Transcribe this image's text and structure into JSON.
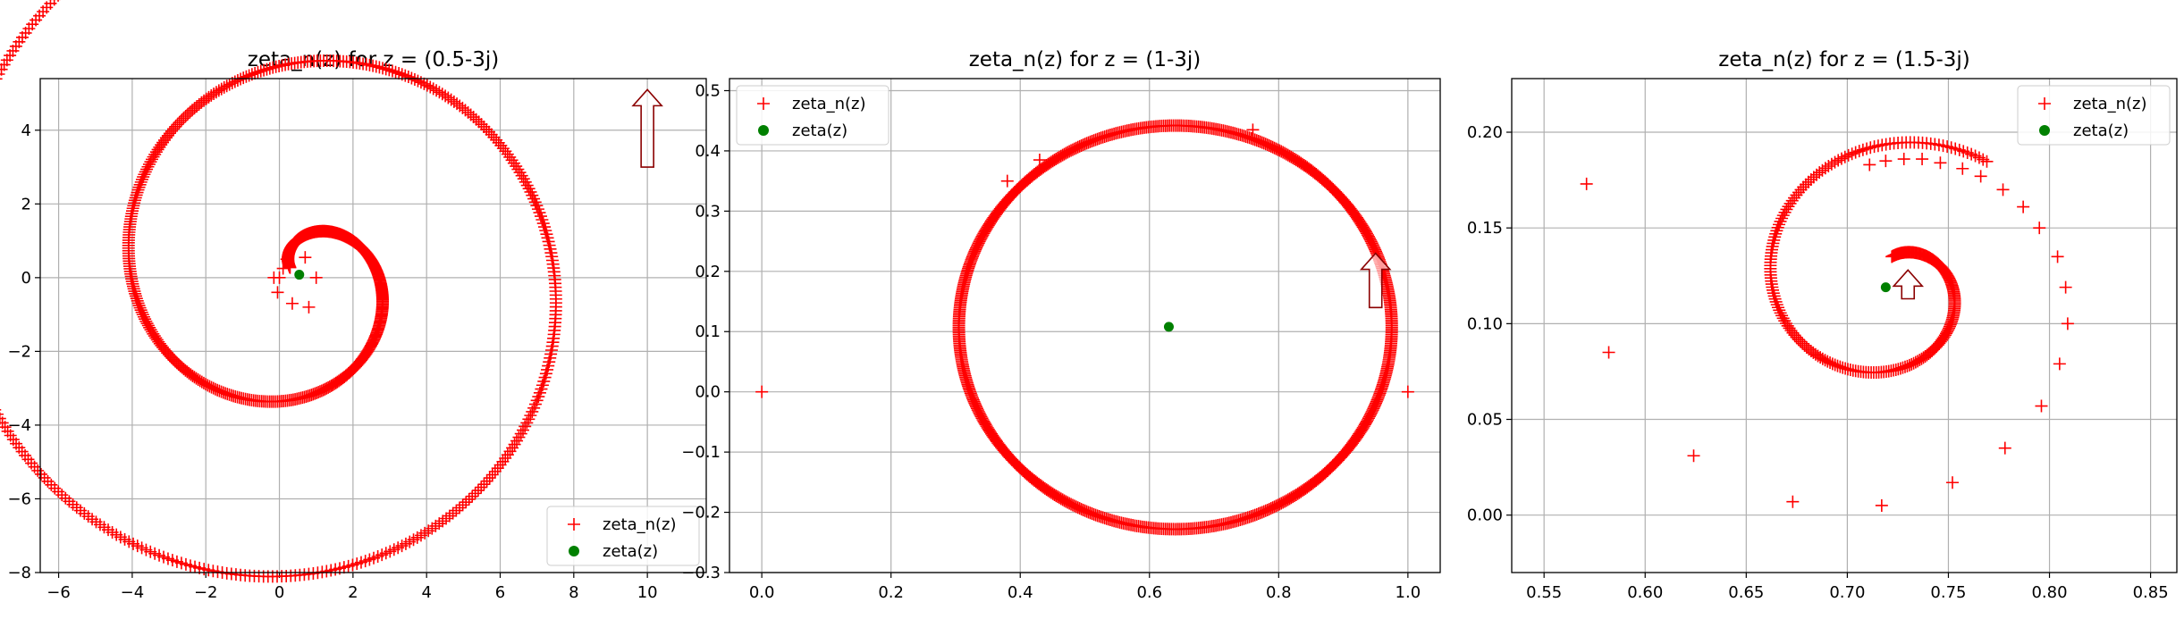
{
  "chart_data": [
    {
      "type": "scatter",
      "title": "zeta_n(z) for z = (0.5-3j)",
      "xlabel": "",
      "ylabel": "",
      "xlim": [
        -6.5,
        11.6
      ],
      "ylim": [
        -8.0,
        5.4
      ],
      "xticks": [
        -6,
        -4,
        -2,
        0,
        2,
        4,
        6,
        8,
        10
      ],
      "yticks": [
        -8,
        -6,
        -4,
        -2,
        0,
        2,
        4
      ],
      "xtick_labels": [
        "−6",
        "−4",
        "−2",
        "0",
        "2",
        "4",
        "6",
        "8",
        "10"
      ],
      "ytick_labels": [
        "−8",
        "−6",
        "−4",
        "−2",
        "0",
        "2",
        "4"
      ],
      "grid": true,
      "legend": {
        "position": "lower-right",
        "entries": [
          "zeta_n(z)",
          "zeta(z)"
        ]
      },
      "spiral": {
        "cx": 0.52,
        "cy": 0.08,
        "r0": 0.3,
        "r1": 10.6,
        "theta_start_deg": 140,
        "turns": 2.15,
        "n": 900
      },
      "sparse_points": [
        [
          0.0,
          0.0
        ],
        [
          0.2,
          0.5
        ],
        [
          0.7,
          0.55
        ],
        [
          1.0,
          0.0
        ],
        [
          0.35,
          -0.7
        ],
        [
          0.8,
          -0.8
        ],
        [
          -0.15,
          0.0
        ],
        [
          -0.05,
          -0.4
        ],
        [
          0.1,
          0.25
        ]
      ],
      "zeta_point": [
        0.54,
        0.08
      ],
      "arrow": {
        "x": 10.0,
        "y_from": 3.0,
        "y_to": 5.1
      },
      "series": [
        {
          "name": "zeta_n(z)",
          "marker": "+",
          "color": "#ff0000"
        },
        {
          "name": "zeta(z)",
          "marker": "o",
          "color": "#008000"
        }
      ]
    },
    {
      "type": "scatter",
      "title": "zeta_n(z) for z = (1-3j)",
      "xlabel": "",
      "ylabel": "",
      "xlim": [
        -0.05,
        1.05
      ],
      "ylim": [
        -0.3,
        0.52
      ],
      "xticks": [
        0.0,
        0.2,
        0.4,
        0.6,
        0.8,
        1.0
      ],
      "yticks": [
        -0.3,
        -0.2,
        -0.1,
        0.0,
        0.1,
        0.2,
        0.3,
        0.4,
        0.5
      ],
      "xtick_labels": [
        "0.0",
        "0.2",
        "0.4",
        "0.6",
        "0.8",
        "1.0"
      ],
      "ytick_labels": [
        "−0.3",
        "−0.2",
        "−0.1",
        "0.0",
        "0.1",
        "0.2",
        "0.3",
        "0.4",
        "0.5"
      ],
      "grid": true,
      "legend": {
        "position": "upper-left",
        "entries": [
          "zeta_n(z)",
          "zeta(z)"
        ]
      },
      "circle": {
        "cx": 0.64,
        "cy": 0.107,
        "r": 0.335,
        "n": 700
      },
      "sparse_points": [
        [
          0.0,
          0.0
        ],
        [
          1.0,
          0.0
        ],
        [
          0.76,
          0.435
        ],
        [
          0.43,
          0.385
        ],
        [
          0.38,
          0.35
        ]
      ],
      "zeta_point": [
        0.63,
        0.108
      ],
      "arrow": {
        "x": 0.95,
        "y_from": 0.14,
        "y_to": 0.23
      },
      "series": [
        {
          "name": "zeta_n(z)",
          "marker": "+",
          "color": "#ff0000"
        },
        {
          "name": "zeta(z)",
          "marker": "o",
          "color": "#008000"
        }
      ]
    },
    {
      "type": "scatter",
      "title": "zeta_n(z) for z = (1.5-3j)",
      "xlabel": "",
      "ylabel": "",
      "xlim": [
        0.534,
        0.863
      ],
      "ylim": [
        -0.03,
        0.228
      ],
      "xticks": [
        0.55,
        0.6,
        0.65,
        0.7,
        0.75,
        0.8,
        0.85
      ],
      "yticks": [
        0.0,
        0.05,
        0.1,
        0.15,
        0.2
      ],
      "xtick_labels": [
        "0.55",
        "0.60",
        "0.65",
        "0.70",
        "0.75",
        "0.80",
        "0.85"
      ],
      "ytick_labels": [
        "0.00",
        "0.05",
        "0.10",
        "0.15",
        "0.20"
      ],
      "grid": true,
      "legend": {
        "position": "upper-right",
        "entries": [
          "zeta_n(z)",
          "zeta(z)"
        ]
      },
      "spiral": {
        "cx": 0.722,
        "cy": 0.12,
        "r0": 0.015,
        "r1": 0.08,
        "theta_start_deg": 90,
        "turns": 1.1,
        "n": 260
      },
      "sparse_points": [
        [
          0.571,
          0.173
        ],
        [
          0.582,
          0.085
        ],
        [
          0.624,
          0.031
        ],
        [
          0.673,
          0.007
        ],
        [
          0.717,
          0.005
        ],
        [
          0.752,
          0.017
        ],
        [
          0.778,
          0.035
        ],
        [
          0.796,
          0.057
        ],
        [
          0.805,
          0.079
        ],
        [
          0.809,
          0.1
        ],
        [
          0.808,
          0.119
        ],
        [
          0.804,
          0.135
        ],
        [
          0.795,
          0.15
        ],
        [
          0.787,
          0.161
        ],
        [
          0.777,
          0.17
        ],
        [
          0.766,
          0.177
        ],
        [
          0.757,
          0.181
        ],
        [
          0.746,
          0.184
        ],
        [
          0.737,
          0.186
        ],
        [
          0.728,
          0.186
        ],
        [
          0.719,
          0.185
        ],
        [
          0.711,
          0.183
        ]
      ],
      "zeta_point": [
        0.719,
        0.119
      ],
      "arrow": {
        "x": 0.73,
        "y_from": 0.113,
        "y_to": 0.128
      },
      "series": [
        {
          "name": "zeta_n(z)",
          "marker": "+",
          "color": "#ff0000"
        },
        {
          "name": "zeta(z)",
          "marker": "o",
          "color": "#008000"
        }
      ]
    }
  ]
}
